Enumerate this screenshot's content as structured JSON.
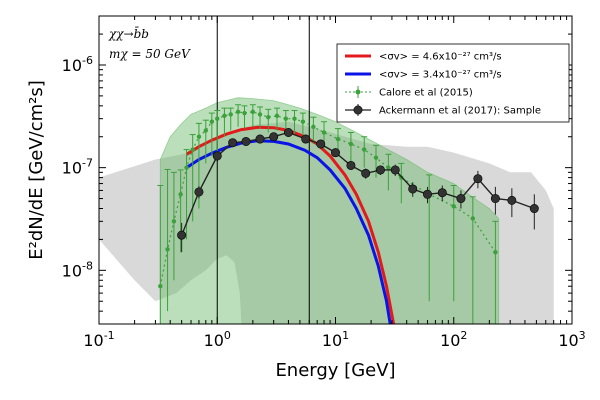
{
  "chart_data": {
    "type": "line",
    "title": "",
    "xlabel": "Energy [GeV]",
    "ylabel": "E²dN/dE [GeV/cm²s]",
    "xscale": "log",
    "yscale": "log",
    "xlim": [
      0.1,
      1000
    ],
    "ylim": [
      3e-09,
      3e-06
    ],
    "x_ticks": [
      {
        "value": 0.1,
        "base": "10",
        "exp": "-1"
      },
      {
        "value": 1,
        "base": "10",
        "exp": "0"
      },
      {
        "value": 10,
        "base": "10",
        "exp": "1"
      },
      {
        "value": 100,
        "base": "10",
        "exp": "2"
      },
      {
        "value": 1000,
        "base": "10",
        "exp": "3"
      }
    ],
    "y_ticks": [
      {
        "value": 1e-08,
        "base": "10",
        "exp": "-8"
      },
      {
        "value": 1e-07,
        "base": "10",
        "exp": "-7"
      },
      {
        "value": 1e-06,
        "base": "10",
        "exp": "-6"
      }
    ],
    "vertical_lines": [
      1.0,
      6.0
    ],
    "annotations": [
      {
        "text": "χχ→b̄b",
        "position": "top-left"
      },
      {
        "text": "mχ = 50 GeV",
        "position": "top-left"
      }
    ],
    "legend": {
      "placement": "top-right",
      "entries": [
        {
          "label": "<σv> = 4.6x10⁻²⁷ cm³/s",
          "color": "#e31a1c",
          "style": "line"
        },
        {
          "label": "<σv> = 3.4x10⁻²⁷ cm³/s",
          "color": "#0a14e6",
          "style": "line"
        },
        {
          "label": "Calore et al (2015)",
          "color": "#3ca03c",
          "style": "dotted-marker"
        },
        {
          "label": "Ackermann et al (2017): Sample",
          "color": "#222222",
          "style": "marker"
        }
      ]
    },
    "bands": [
      {
        "name": "Ackermann systematic band",
        "color": "#d9d9d9",
        "upper": [
          [
            0.1,
            8e-08
          ],
          [
            0.3,
            1.2e-07
          ],
          [
            0.6,
            1.4e-07
          ],
          [
            1,
            2e-07
          ],
          [
            2,
            2.6e-07
          ],
          [
            4,
            2.8e-07
          ],
          [
            8,
            2.3e-07
          ],
          [
            12,
            2e-07
          ],
          [
            20,
            1.7e-07
          ],
          [
            40,
            1.6e-07
          ],
          [
            60,
            1.6e-07
          ],
          [
            100,
            1.4e-07
          ],
          [
            200,
            1.1e-07
          ],
          [
            300,
            9e-08
          ],
          [
            450,
            9e-08
          ],
          [
            600,
            6e-08
          ],
          [
            700,
            4e-08
          ]
        ],
        "lower": [
          [
            700,
            3e-09
          ],
          [
            1.6,
            3e-09
          ],
          [
            1.55,
            6e-09
          ],
          [
            1.4,
            1.2e-08
          ],
          [
            1.2,
            1.4e-08
          ],
          [
            1,
            1.3e-08
          ],
          [
            0.8,
            1e-08
          ],
          [
            0.6,
            8e-09
          ],
          [
            0.45,
            6e-09
          ],
          [
            0.3,
            5e-09
          ],
          [
            0.2,
            8e-09
          ],
          [
            0.1,
            2e-08
          ]
        ]
      },
      {
        "name": "Calore systematic band",
        "color": "#66b966",
        "upper": [
          [
            0.33,
            1.2e-07
          ],
          [
            0.4,
            2e-07
          ],
          [
            0.5,
            2.7e-07
          ],
          [
            0.6,
            3.3e-07
          ],
          [
            0.8,
            3.8e-07
          ],
          [
            1,
            4.3e-07
          ],
          [
            1.5,
            4.8e-07
          ],
          [
            2,
            4.7e-07
          ],
          [
            3,
            4.5e-07
          ],
          [
            4,
            4.1e-07
          ],
          [
            5,
            3.8e-07
          ],
          [
            7,
            3.3e-07
          ],
          [
            10,
            2.8e-07
          ],
          [
            15,
            2.2e-07
          ],
          [
            25,
            1.6e-07
          ],
          [
            40,
            1.2e-07
          ],
          [
            60,
            9e-08
          ],
          [
            100,
            7e-08
          ],
          [
            150,
            5e-08
          ],
          [
            200,
            4e-08
          ],
          [
            240,
            3.2e-08
          ]
        ],
        "lower": [
          [
            240,
            3e-09
          ],
          [
            0.33,
            3e-09
          ]
        ]
      }
    ],
    "series": [
      {
        "name": "<σv> = 4.6x10⁻²⁷ cm³/s",
        "color": "#e31a1c",
        "x": [
          0.55,
          0.7,
          0.9,
          1.2,
          1.6,
          2.2,
          3,
          4,
          5.5,
          7,
          9,
          12,
          15,
          19,
          23,
          27,
          31
        ],
        "y": [
          1.35e-07,
          1.6e-07,
          1.85e-07,
          2.12e-07,
          2.35e-07,
          2.47e-07,
          2.45e-07,
          2.3e-07,
          2e-07,
          1.7e-07,
          1.3e-07,
          8.5e-08,
          5.5e-08,
          3e-08,
          1.5e-08,
          7e-09,
          3e-09
        ]
      },
      {
        "name": "<σv> = 3.4x10⁻²⁷ cm³/s",
        "color": "#0a14e6",
        "x": [
          0.55,
          0.7,
          0.9,
          1.2,
          1.6,
          2.2,
          3,
          4,
          5.5,
          7,
          9,
          12,
          15,
          19,
          23,
          27,
          29
        ],
        "y": [
          1e-07,
          1.2e-07,
          1.38e-07,
          1.58e-07,
          1.74e-07,
          1.83e-07,
          1.8e-07,
          1.7e-07,
          1.48e-07,
          1.25e-07,
          9.5e-08,
          6.3e-08,
          4e-08,
          2.2e-08,
          1.1e-08,
          5e-09,
          3e-09
        ]
      },
      {
        "name": "Calore et al (2015)",
        "color": "#3ca03c",
        "x": [
          0.33,
          0.38,
          0.43,
          0.49,
          0.55,
          0.62,
          0.7,
          0.8,
          0.9,
          1.0,
          1.15,
          1.3,
          1.5,
          1.7,
          2.0,
          2.3,
          2.7,
          3.2,
          3.8,
          4.5,
          5.3,
          6.5,
          8.0,
          10.5,
          13.5,
          17.5,
          22,
          28,
          36,
          62,
          100,
          145,
          225
        ],
        "y": [
          7e-09,
          1.6e-08,
          3e-08,
          5.5e-08,
          1e-07,
          1.5e-07,
          2e-07,
          2.3e-07,
          2.8e-07,
          3e-07,
          3.2e-07,
          3.3e-07,
          3.5e-07,
          3.4e-07,
          3.5e-07,
          3.3e-07,
          3.1e-07,
          3.2e-07,
          3e-07,
          3e-07,
          2.8e-07,
          2.5e-07,
          2.2e-07,
          1.9e-07,
          1.7e-07,
          1.5e-07,
          1.25e-07,
          1e-07,
          8e-08,
          5.5e-08,
          4.2e-08,
          3.2e-08,
          1.5e-08
        ],
        "yerr_lo": [
          5e-09,
          1.2e-08,
          2.2e-08,
          4e-08,
          8e-08,
          1.2e-07,
          1.6e-07,
          1.2e-07,
          1.5e-07,
          1.6e-07,
          1.2e-07,
          1e-07,
          1e-07,
          1e-07,
          1e-07,
          9e-08,
          9e-08,
          9e-08,
          9e-08,
          9e-08,
          8e-08,
          8e-08,
          7e-08,
          6e-08,
          5.5e-08,
          5e-08,
          4.5e-08,
          4e-08,
          3.5e-08,
          5e-08,
          3.7e-08,
          2.9e-08,
          1.2e-08
        ],
        "yerr_hi": [
          6e-08,
          8e-08,
          6e-08,
          4e-08,
          5e-08,
          6e-08,
          7e-08,
          6e-08,
          6e-08,
          6e-08,
          6e-08,
          5e-08,
          6e-08,
          6e-08,
          6e-08,
          6e-08,
          6e-08,
          6e-08,
          6e-08,
          6e-08,
          6e-08,
          6e-08,
          6e-08,
          5e-08,
          5e-08,
          5e-08,
          4e-08,
          3.5e-08,
          3e-08,
          3e-08,
          2.5e-08,
          2e-08,
          1.5e-08
        ]
      },
      {
        "name": "Ackermann et al (2017): Sample",
        "color": "#222222",
        "x": [
          0.5,
          0.7,
          1.0,
          1.35,
          1.75,
          2.3,
          3.0,
          4.0,
          5.6,
          7.5,
          10,
          13.5,
          18,
          24,
          32,
          45,
          60,
          80,
          115,
          160,
          225,
          310,
          480
        ],
        "y": [
          2.2e-08,
          5.8e-08,
          1.3e-07,
          1.75e-07,
          1.8e-07,
          1.9e-07,
          2e-07,
          2.2e-07,
          1.9e-07,
          1.7e-07,
          1.4e-07,
          1.05e-07,
          8.8e-08,
          9.5e-08,
          9.5e-08,
          6.2e-08,
          5.5e-08,
          5.7e-08,
          5e-08,
          7.8e-08,
          5e-08,
          4.8e-08,
          4e-08
        ],
        "yerr_lo": [
          7e-09,
          8e-09,
          1.5e-08,
          1.2e-08,
          1e-08,
          1e-08,
          1e-08,
          1e-08,
          1e-08,
          1e-08,
          1e-08,
          1e-08,
          1e-08,
          1e-08,
          1.2e-08,
          1e-08,
          1e-08,
          1e-08,
          1e-08,
          1.5e-08,
          1.5e-08,
          1.5e-08,
          1.5e-08
        ],
        "yerr_hi": [
          7e-09,
          8e-09,
          1.5e-08,
          1.2e-08,
          1e-08,
          1e-08,
          1e-08,
          1e-08,
          1e-08,
          1e-08,
          1e-08,
          1e-08,
          1e-08,
          1e-08,
          1.2e-08,
          1e-08,
          1e-08,
          1e-08,
          1e-08,
          1.5e-08,
          1.5e-08,
          1.5e-08,
          1.5e-08
        ]
      }
    ]
  }
}
